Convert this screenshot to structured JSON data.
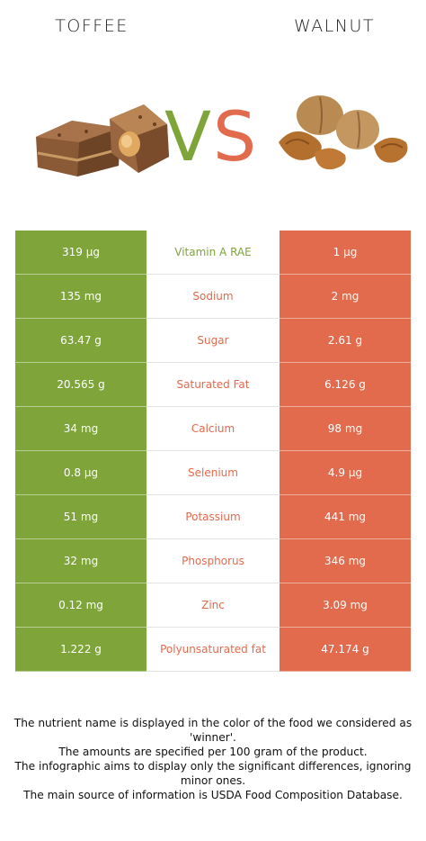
{
  "foods": {
    "left": "TOFFEE",
    "right": "WALNUT"
  },
  "vs": {
    "v": "V",
    "s": "S"
  },
  "colors": {
    "left": "#7ea43a",
    "right": "#e26a4d"
  },
  "rows": [
    {
      "left": "319 µg",
      "nutrient": "Vitamin A RAE",
      "right": "1 µg",
      "winner": "left"
    },
    {
      "left": "135 mg",
      "nutrient": "Sodium",
      "right": "2 mg",
      "winner": "right"
    },
    {
      "left": "63.47 g",
      "nutrient": "Sugar",
      "right": "2.61 g",
      "winner": "right"
    },
    {
      "left": "20.565 g",
      "nutrient": "Saturated Fat",
      "right": "6.126 g",
      "winner": "right"
    },
    {
      "left": "34 mg",
      "nutrient": "Calcium",
      "right": "98 mg",
      "winner": "right"
    },
    {
      "left": "0.8 µg",
      "nutrient": "Selenium",
      "right": "4.9 µg",
      "winner": "right"
    },
    {
      "left": "51 mg",
      "nutrient": "Potassium",
      "right": "441 mg",
      "winner": "right"
    },
    {
      "left": "32 mg",
      "nutrient": "Phosphorus",
      "right": "346 mg",
      "winner": "right"
    },
    {
      "left": "0.12 mg",
      "nutrient": "Zinc",
      "right": "3.09 mg",
      "winner": "right"
    },
    {
      "left": "1.222 g",
      "nutrient": "Polyunsaturated fat",
      "right": "47.174 g",
      "winner": "right"
    }
  ],
  "footer": [
    "The nutrient name is displayed in the color of the food we considered as 'winner'.",
    "The amounts are specified per 100 gram of the product.",
    "The infographic aims to display only the significant differences, ignoring minor ones.",
    "The main source of information is USDA Food Composition Database."
  ]
}
